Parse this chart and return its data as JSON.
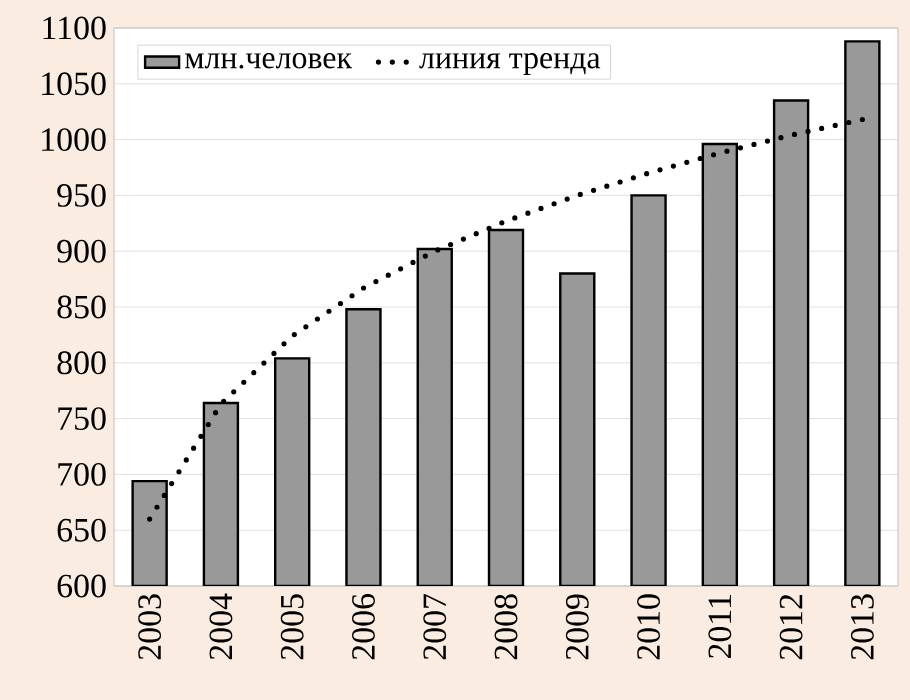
{
  "chart_data": {
    "type": "bar",
    "categories": [
      "2003",
      "2004",
      "2005",
      "2006",
      "2007",
      "2008",
      "2009",
      "2010",
      "2011",
      "2012",
      "2013"
    ],
    "series": [
      {
        "name": "млн.человек",
        "color": "#999999",
        "values": [
          694,
          764,
          804,
          848,
          902,
          919,
          880,
          950,
          996,
          1035,
          1088
        ]
      },
      {
        "name": "линия тренда",
        "type": "line",
        "color": "#000000",
        "line_style": "dotted",
        "marker": "none",
        "values": [
          660,
          763,
          824,
          867,
          900,
          927,
          950,
          970,
          988,
          1004,
          1018
        ]
      }
    ],
    "ylim": [
      600,
      1100
    ],
    "yticks": [
      600,
      650,
      700,
      750,
      800,
      850,
      900,
      950,
      1000,
      1050,
      1100
    ],
    "grid": "y",
    "legend": "top left"
  }
}
